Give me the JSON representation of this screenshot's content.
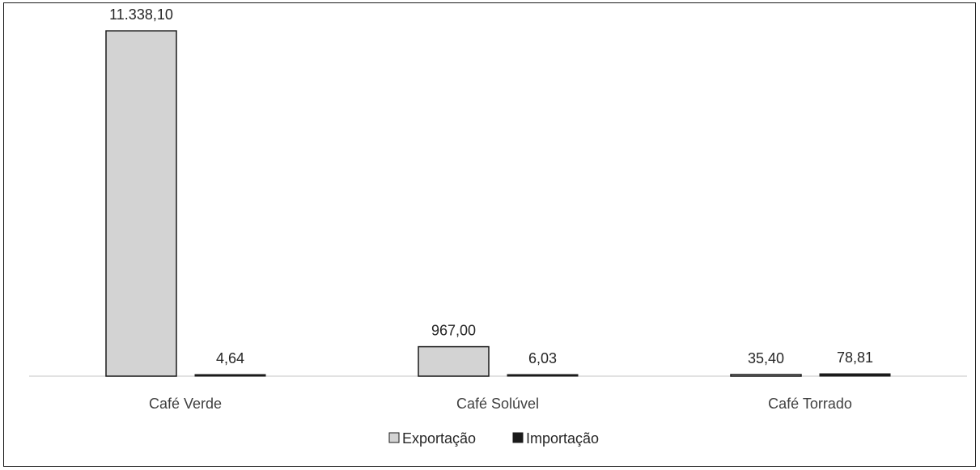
{
  "chart_data": {
    "type": "bar",
    "categories": [
      "Café Verde",
      "Café Solúvel",
      "Café Torrado"
    ],
    "series": [
      {
        "name": "Exportação",
        "values": [
          11338.1,
          967.0,
          35.4
        ],
        "labels": [
          "11.338,10",
          "967,00",
          "35,40"
        ],
        "color": "#d3d3d3"
      },
      {
        "name": "Importação",
        "values": [
          4.64,
          6.03,
          78.81
        ],
        "labels": [
          "4,64",
          "6,03",
          "78,81"
        ],
        "color": "#1a1a1a"
      }
    ],
    "title": "",
    "xlabel": "",
    "ylabel": "",
    "ylim": [
      0,
      12350
    ],
    "grid": false,
    "legend_position": "bottom"
  }
}
